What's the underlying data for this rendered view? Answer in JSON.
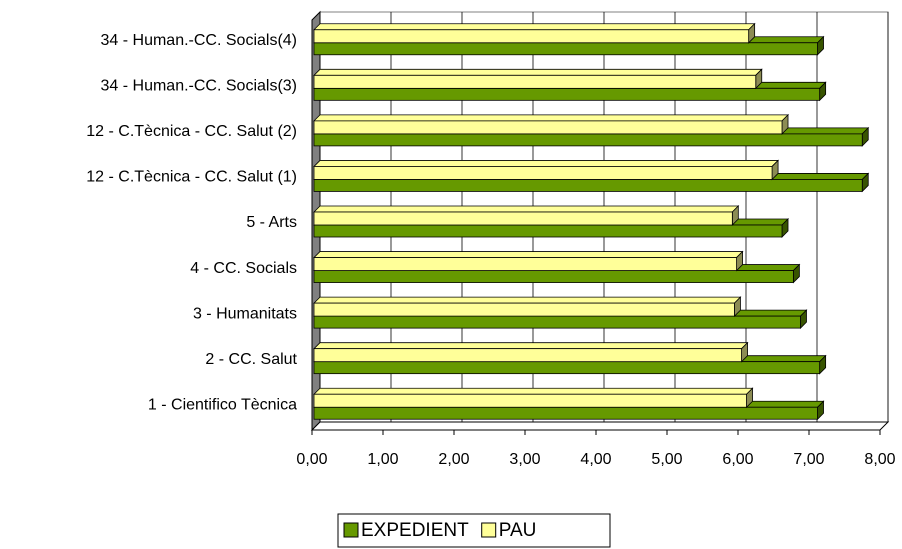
{
  "chart_data": {
    "type": "bar",
    "orientation": "horizontal",
    "categories": [
      "1 - Cientifico Tècnica",
      "2 - CC. Salut",
      "3 - Humanitats",
      "4 - CC. Socials",
      "5 - Arts",
      "12 - C.Tècnica - CC. Salut (1)",
      "12 - C.Tècnica - CC. Salut (2)",
      "34 - Human.-CC. Socials(3)",
      "34 - Human.-CC. Socials(4)"
    ],
    "series": [
      {
        "name": "EXPEDIENT",
        "color": "#669900",
        "values": [
          7.12,
          7.15,
          6.88,
          6.78,
          6.62,
          7.75,
          7.75,
          7.15,
          7.12
        ]
      },
      {
        "name": "PAU",
        "color": "#ffff99",
        "values": [
          6.12,
          6.05,
          5.95,
          5.98,
          5.92,
          6.48,
          6.62,
          6.25,
          6.15
        ]
      }
    ],
    "xlim": [
      0,
      8
    ],
    "xticks": [
      {
        "value": 0,
        "label": "0,00"
      },
      {
        "value": 1,
        "label": "1,00"
      },
      {
        "value": 2,
        "label": "2,00"
      },
      {
        "value": 3,
        "label": "3,00"
      },
      {
        "value": 4,
        "label": "4,00"
      },
      {
        "value": 5,
        "label": "5,00"
      },
      {
        "value": 6,
        "label": "6,00"
      },
      {
        "value": 7,
        "label": "7,00"
      },
      {
        "value": 8,
        "label": "8,00"
      }
    ],
    "grid": true,
    "legend": "bottom"
  }
}
